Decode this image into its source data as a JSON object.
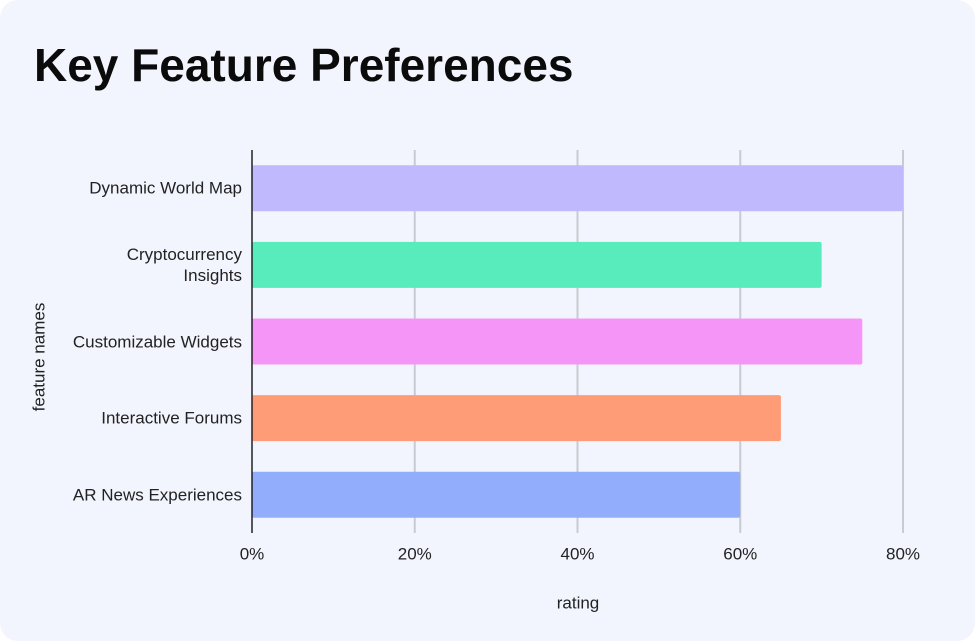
{
  "chart_data": {
    "type": "bar",
    "orientation": "horizontal",
    "title": "Key Feature Preferences",
    "x_label": "rating",
    "y_label": "feature names",
    "categories": [
      "Dynamic World Map",
      "Cryptocurrency Insights",
      "Customizable Widgets",
      "Interactive Forums",
      "AR News Experiences"
    ],
    "values": [
      80,
      70,
      75,
      65,
      60
    ],
    "colors": [
      "#c0b9fd",
      "#58ebbb",
      "#f595f8",
      "#fe9c78",
      "#93adfd"
    ],
    "xlim": [
      0,
      80
    ],
    "xticks": [
      {
        "value": 0,
        "label": "0%"
      },
      {
        "value": 20,
        "label": "20%"
      },
      {
        "value": 40,
        "label": "40%"
      },
      {
        "value": 60,
        "label": "60%"
      },
      {
        "value": 80,
        "label": "80%"
      }
    ],
    "grid": true
  }
}
